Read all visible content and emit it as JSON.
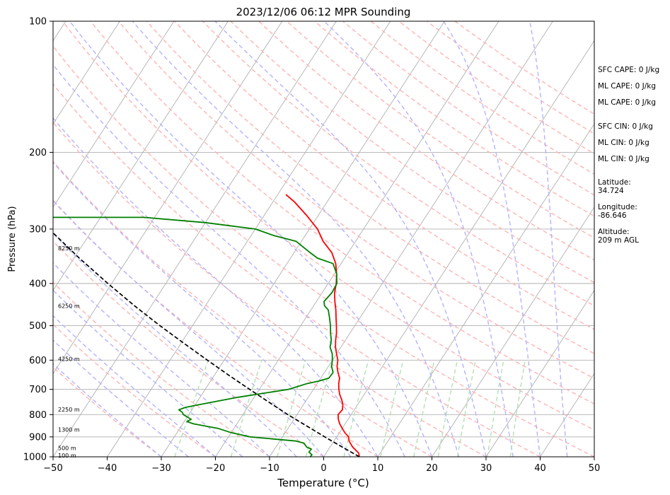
{
  "chart_data": {
    "type": "line",
    "title": "2023/12/06 06:12 MPR Sounding",
    "xlabel": "Temperature (°C)",
    "ylabel": "Pressure (hPa)",
    "xlim": [
      -50,
      50
    ],
    "ylim": [
      1000,
      100
    ],
    "y_scale": "log",
    "skew": true,
    "x_ticks": [
      -50,
      -40,
      -30,
      -20,
      -10,
      0,
      10,
      20,
      30,
      40,
      50
    ],
    "x_tick_labels": [
      "−50",
      "−40",
      "−30",
      "−20",
      "−10",
      "0",
      "10",
      "20",
      "30",
      "40",
      "50"
    ],
    "y_ticks": [
      1000,
      900,
      800,
      700,
      600,
      500,
      400,
      300,
      200,
      100
    ],
    "y_tick_labels": [
      "1000",
      "900",
      "800",
      "700",
      "600",
      "500",
      "400",
      "300",
      "200",
      "100"
    ],
    "grid": true,
    "series": [
      {
        "key": "temperature",
        "color": "#ff0000",
        "style": "solid",
        "points": [
          [
            1000,
            6.6
          ],
          [
            980,
            6.0
          ],
          [
            950,
            4.2
          ],
          [
            920,
            2.8
          ],
          [
            900,
            2.2
          ],
          [
            880,
            1.0
          ],
          [
            860,
            0.0
          ],
          [
            840,
            -1.0
          ],
          [
            820,
            -1.8
          ],
          [
            800,
            -2.4
          ],
          [
            780,
            -2.2
          ],
          [
            760,
            -2.7
          ],
          [
            740,
            -3.5
          ],
          [
            720,
            -4.5
          ],
          [
            700,
            -5.3
          ],
          [
            680,
            -6.0
          ],
          [
            660,
            -6.5
          ],
          [
            640,
            -7.5
          ],
          [
            620,
            -8.4
          ],
          [
            600,
            -9.0
          ],
          [
            580,
            -10.0
          ],
          [
            560,
            -11.0
          ],
          [
            540,
            -11.8
          ],
          [
            520,
            -12.5
          ],
          [
            500,
            -13.4
          ],
          [
            480,
            -14.4
          ],
          [
            460,
            -15.4
          ],
          [
            440,
            -16.6
          ],
          [
            420,
            -17.7
          ],
          [
            400,
            -18.5
          ],
          [
            380,
            -19.6
          ],
          [
            360,
            -21.0
          ],
          [
            340,
            -23.0
          ],
          [
            320,
            -26.0
          ],
          [
            300,
            -28.5
          ],
          [
            280,
            -32.0
          ],
          [
            260,
            -36.0
          ],
          [
            250,
            -38.5
          ]
        ]
      },
      {
        "key": "dewpoint",
        "color": "#008000",
        "style": "solid",
        "points": [
          [
            1000,
            -2.5
          ],
          [
            990,
            -2.4
          ],
          [
            975,
            -3.3
          ],
          [
            960,
            -3.2
          ],
          [
            950,
            -4.3
          ],
          [
            930,
            -5.3
          ],
          [
            920,
            -7.0
          ],
          [
            900,
            -16.0
          ],
          [
            880,
            -20.0
          ],
          [
            860,
            -23.0
          ],
          [
            840,
            -28.0
          ],
          [
            830,
            -29.5
          ],
          [
            820,
            -29.0
          ],
          [
            810,
            -30.0
          ],
          [
            800,
            -31.0
          ],
          [
            790,
            -31.5
          ],
          [
            780,
            -32.4
          ],
          [
            770,
            -31.5
          ],
          [
            760,
            -29.5
          ],
          [
            730,
            -23.0
          ],
          [
            700,
            -14.6
          ],
          [
            680,
            -12.0
          ],
          [
            670,
            -10.0
          ],
          [
            660,
            -8.5
          ],
          [
            640,
            -8.4
          ],
          [
            620,
            -9.4
          ],
          [
            600,
            -10.0
          ],
          [
            580,
            -10.8
          ],
          [
            560,
            -12.0
          ],
          [
            540,
            -12.6
          ],
          [
            520,
            -13.6
          ],
          [
            500,
            -14.5
          ],
          [
            480,
            -15.6
          ],
          [
            460,
            -16.8
          ],
          [
            450,
            -18.0
          ],
          [
            440,
            -18.6
          ],
          [
            420,
            -18.2
          ],
          [
            400,
            -18.4
          ],
          [
            380,
            -19.6
          ],
          [
            360,
            -21.5
          ],
          [
            350,
            -25.0
          ],
          [
            340,
            -27.0
          ],
          [
            320,
            -31.0
          ],
          [
            310,
            -36.0
          ],
          [
            300,
            -40.0
          ],
          [
            290,
            -50.0
          ],
          [
            282,
            -62.0
          ],
          [
            282,
            -80.0
          ]
        ]
      },
      {
        "key": "parcel_profile",
        "color": "#000000",
        "style": "dashed",
        "points": [
          [
            1000,
            6.6
          ],
          [
            950,
            2.3
          ],
          [
            900,
            -2.2
          ],
          [
            850,
            -6.8
          ],
          [
            800,
            -11.7
          ],
          [
            750,
            -16.6
          ],
          [
            700,
            -21.8
          ],
          [
            650,
            -27.3
          ],
          [
            600,
            -33.1
          ],
          [
            550,
            -39.3
          ],
          [
            500,
            -46.0
          ],
          [
            450,
            -53.1
          ],
          [
            400,
            -60.7
          ],
          [
            350,
            -69.0
          ],
          [
            300,
            -78.1
          ],
          [
            250,
            -88.5
          ],
          [
            200,
            -99.5
          ]
        ]
      }
    ],
    "height_labels": [
      {
        "p": 992,
        "text": "100 m"
      },
      {
        "p": 955,
        "text": "500 m"
      },
      {
        "p": 866,
        "text": "1300 m"
      },
      {
        "p": 778,
        "text": "2250 m"
      },
      {
        "p": 596,
        "text": "4250 m"
      },
      {
        "p": 450,
        "text": "6250 m"
      },
      {
        "p": 332,
        "text": "8250 m"
      }
    ],
    "annotations": [
      "SFC CAPE: 0 J/kg",
      "ML CAPE: 0 J/kg",
      "ML CAPE: 0 J/kg",
      "SFC CIN: 0 J/kg",
      "ML CIN: 0 J/kg",
      "ML CIN: 0 J/kg",
      "Latitude:",
      "34.724",
      "Longitude:",
      "-86.646",
      "Altitude:",
      "209 m AGL"
    ],
    "background_lines": {
      "isotherm_color": "#b0b0b0",
      "dry_adiabat_color": "#ffb3b3",
      "moist_adiabat_color": "#b3b3ff",
      "mixing_ratio_color": "#b3e0b3",
      "pressure_grid_color": "#b0b0b0"
    }
  }
}
